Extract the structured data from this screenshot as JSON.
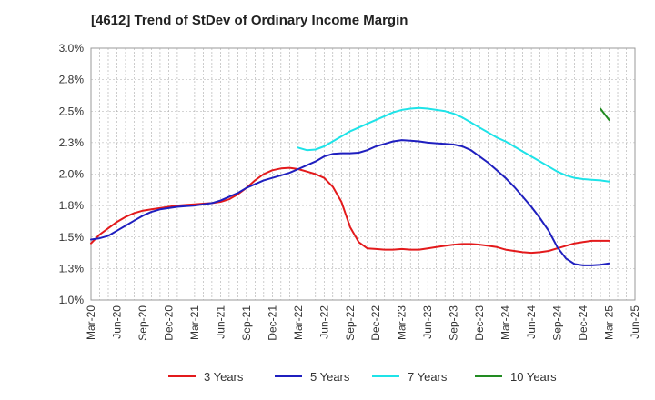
{
  "chart_data": {
    "type": "line",
    "title": "[4612]  Trend of StDev of Ordinary Income Margin",
    "xlabel": "",
    "ylabel": "",
    "x_ticks": [
      "Mar-20",
      "Jun-20",
      "Sep-20",
      "Dec-20",
      "Mar-21",
      "Jun-21",
      "Sep-21",
      "Dec-21",
      "Mar-22",
      "Jun-22",
      "Sep-22",
      "Dec-22",
      "Mar-23",
      "Jun-23",
      "Sep-23",
      "Dec-23",
      "Mar-24",
      "Jun-24",
      "Sep-24",
      "Dec-24",
      "Mar-25",
      "Jun-25"
    ],
    "y_ticks": [
      "1.0%",
      "1.3%",
      "1.5%",
      "1.8%",
      "2.0%",
      "2.3%",
      "2.5%",
      "2.8%",
      "3.0%"
    ],
    "ylim": [
      1.0,
      3.0
    ],
    "grid": true,
    "legend_position": "bottom",
    "series": [
      {
        "name": "3 Years",
        "color": "#e31a1c",
        "points": [
          [
            "Mar-20",
            1.45
          ],
          [
            "Apr-20",
            1.52
          ],
          [
            "May-20",
            1.57
          ],
          [
            "Jun-20",
            1.62
          ],
          [
            "Jul-20",
            1.66
          ],
          [
            "Aug-20",
            1.69
          ],
          [
            "Sep-20",
            1.71
          ],
          [
            "Oct-20",
            1.72
          ],
          [
            "Nov-20",
            1.73
          ],
          [
            "Dec-20",
            1.74
          ],
          [
            "Jan-21",
            1.75
          ],
          [
            "Feb-21",
            1.755
          ],
          [
            "Mar-21",
            1.76
          ],
          [
            "Apr-21",
            1.765
          ],
          [
            "May-21",
            1.77
          ],
          [
            "Jun-21",
            1.78
          ],
          [
            "Jul-21",
            1.8
          ],
          [
            "Aug-21",
            1.84
          ],
          [
            "Sep-21",
            1.89
          ],
          [
            "Oct-21",
            1.95
          ],
          [
            "Nov-21",
            2.0
          ],
          [
            "Dec-21",
            2.03
          ],
          [
            "Jan-22",
            2.045
          ],
          [
            "Feb-22",
            2.05
          ],
          [
            "Mar-22",
            2.04
          ],
          [
            "Apr-22",
            2.02
          ],
          [
            "May-22",
            2.0
          ],
          [
            "Jun-22",
            1.97
          ],
          [
            "Jul-22",
            1.9
          ],
          [
            "Aug-22",
            1.78
          ],
          [
            "Sep-22",
            1.58
          ],
          [
            "Oct-22",
            1.46
          ],
          [
            "Nov-22",
            1.41
          ],
          [
            "Dec-22",
            1.405
          ],
          [
            "Jan-23",
            1.4
          ],
          [
            "Feb-23",
            1.4
          ],
          [
            "Mar-23",
            1.405
          ],
          [
            "Apr-23",
            1.4
          ],
          [
            "May-23",
            1.4
          ],
          [
            "Jun-23",
            1.41
          ],
          [
            "Jul-23",
            1.42
          ],
          [
            "Aug-23",
            1.43
          ],
          [
            "Sep-23",
            1.44
          ],
          [
            "Oct-23",
            1.445
          ],
          [
            "Nov-23",
            1.445
          ],
          [
            "Dec-23",
            1.44
          ],
          [
            "Jan-24",
            1.43
          ],
          [
            "Feb-24",
            1.42
          ],
          [
            "Mar-24",
            1.4
          ],
          [
            "Apr-24",
            1.39
          ],
          [
            "May-24",
            1.38
          ],
          [
            "Jun-24",
            1.375
          ],
          [
            "Jul-24",
            1.38
          ],
          [
            "Aug-24",
            1.39
          ],
          [
            "Sep-24",
            1.41
          ],
          [
            "Oct-24",
            1.43
          ],
          [
            "Nov-24",
            1.45
          ],
          [
            "Dec-24",
            1.46
          ],
          [
            "Jan-25",
            1.47
          ],
          [
            "Feb-25",
            1.47
          ],
          [
            "Mar-25",
            1.47
          ]
        ]
      },
      {
        "name": "5 Years",
        "color": "#1f1fbf",
        "points": [
          [
            "Mar-20",
            1.48
          ],
          [
            "Apr-20",
            1.49
          ],
          [
            "May-20",
            1.51
          ],
          [
            "Jun-20",
            1.55
          ],
          [
            "Jul-20",
            1.59
          ],
          [
            "Aug-20",
            1.63
          ],
          [
            "Sep-20",
            1.67
          ],
          [
            "Oct-20",
            1.7
          ],
          [
            "Nov-20",
            1.72
          ],
          [
            "Dec-20",
            1.73
          ],
          [
            "Jan-21",
            1.74
          ],
          [
            "Feb-21",
            1.745
          ],
          [
            "Mar-21",
            1.75
          ],
          [
            "Apr-21",
            1.76
          ],
          [
            "May-21",
            1.77
          ],
          [
            "Jun-21",
            1.79
          ],
          [
            "Jul-21",
            1.82
          ],
          [
            "Aug-21",
            1.85
          ],
          [
            "Sep-21",
            1.89
          ],
          [
            "Oct-21",
            1.92
          ],
          [
            "Nov-21",
            1.95
          ],
          [
            "Dec-21",
            1.97
          ],
          [
            "Jan-22",
            1.99
          ],
          [
            "Feb-22",
            2.01
          ],
          [
            "Mar-22",
            2.04
          ],
          [
            "Apr-22",
            2.07
          ],
          [
            "May-22",
            2.1
          ],
          [
            "Jun-22",
            2.14
          ],
          [
            "Jul-22",
            2.16
          ],
          [
            "Aug-22",
            2.165
          ],
          [
            "Sep-22",
            2.165
          ],
          [
            "Oct-22",
            2.17
          ],
          [
            "Nov-22",
            2.19
          ],
          [
            "Dec-22",
            2.22
          ],
          [
            "Jan-23",
            2.24
          ],
          [
            "Feb-23",
            2.26
          ],
          [
            "Mar-23",
            2.27
          ],
          [
            "Apr-23",
            2.265
          ],
          [
            "May-23",
            2.26
          ],
          [
            "Jun-23",
            2.25
          ],
          [
            "Jul-23",
            2.245
          ],
          [
            "Aug-23",
            2.24
          ],
          [
            "Sep-23",
            2.235
          ],
          [
            "Oct-23",
            2.22
          ],
          [
            "Nov-23",
            2.19
          ],
          [
            "Dec-23",
            2.14
          ],
          [
            "Jan-24",
            2.09
          ],
          [
            "Feb-24",
            2.03
          ],
          [
            "Mar-24",
            1.97
          ],
          [
            "Apr-24",
            1.9
          ],
          [
            "May-24",
            1.82
          ],
          [
            "Jun-24",
            1.74
          ],
          [
            "Jul-24",
            1.65
          ],
          [
            "Aug-24",
            1.55
          ],
          [
            "Sep-24",
            1.42
          ],
          [
            "Oct-24",
            1.33
          ],
          [
            "Nov-24",
            1.285
          ],
          [
            "Dec-24",
            1.275
          ],
          [
            "Jan-25",
            1.275
          ],
          [
            "Feb-25",
            1.28
          ],
          [
            "Mar-25",
            1.29
          ]
        ]
      },
      {
        "name": "7 Years",
        "color": "#1ee3e8",
        "points": [
          [
            "Mar-22",
            2.21
          ],
          [
            "Apr-22",
            2.19
          ],
          [
            "May-22",
            2.195
          ],
          [
            "Jun-22",
            2.22
          ],
          [
            "Jul-22",
            2.26
          ],
          [
            "Aug-22",
            2.3
          ],
          [
            "Sep-22",
            2.34
          ],
          [
            "Oct-22",
            2.37
          ],
          [
            "Nov-22",
            2.4
          ],
          [
            "Dec-22",
            2.43
          ],
          [
            "Jan-23",
            2.46
          ],
          [
            "Feb-23",
            2.49
          ],
          [
            "Mar-23",
            2.51
          ],
          [
            "Apr-23",
            2.52
          ],
          [
            "May-23",
            2.525
          ],
          [
            "Jun-23",
            2.52
          ],
          [
            "Jul-23",
            2.51
          ],
          [
            "Aug-23",
            2.5
          ],
          [
            "Sep-23",
            2.48
          ],
          [
            "Oct-23",
            2.45
          ],
          [
            "Nov-23",
            2.41
          ],
          [
            "Dec-23",
            2.37
          ],
          [
            "Jan-24",
            2.33
          ],
          [
            "Feb-24",
            2.29
          ],
          [
            "Mar-24",
            2.26
          ],
          [
            "Apr-24",
            2.22
          ],
          [
            "May-24",
            2.18
          ],
          [
            "Jun-24",
            2.14
          ],
          [
            "Jul-24",
            2.1
          ],
          [
            "Aug-24",
            2.06
          ],
          [
            "Sep-24",
            2.02
          ],
          [
            "Oct-24",
            1.99
          ],
          [
            "Nov-24",
            1.97
          ],
          [
            "Dec-24",
            1.96
          ],
          [
            "Jan-25",
            1.955
          ],
          [
            "Feb-25",
            1.95
          ],
          [
            "Mar-25",
            1.94
          ]
        ]
      },
      {
        "name": "10 Years",
        "color": "#228b22",
        "points": [
          [
            "Feb-25",
            2.52
          ],
          [
            "Mar-25",
            2.43
          ]
        ]
      }
    ]
  }
}
